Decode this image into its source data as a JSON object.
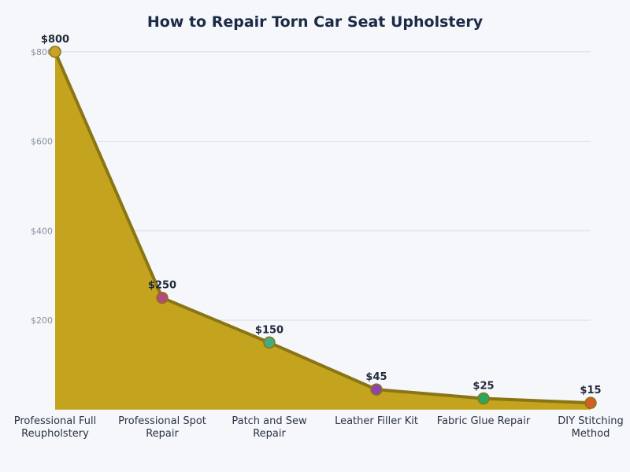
{
  "chart_data": {
    "type": "area",
    "title": "How to Repair Torn Car Seat Upholstery",
    "xlabel": "",
    "ylabel": "",
    "categories": [
      [
        "Professional Full",
        "Reupholstery"
      ],
      [
        "Professional Spot",
        "Repair"
      ],
      [
        "Patch and Sew",
        "Repair"
      ],
      [
        "Leather Filler Kit"
      ],
      [
        "Fabric Glue Repair"
      ],
      [
        "DIY Stitching",
        "Method"
      ]
    ],
    "values": [
      800,
      250,
      150,
      45,
      25,
      15
    ],
    "data_labels": [
      "$800",
      "$250",
      "$150",
      "$45",
      "$25",
      "$15"
    ],
    "ylim": [
      0,
      800
    ],
    "yticks": [
      200,
      400,
      600,
      800
    ],
    "ytick_labels": [
      "$200",
      "$400",
      "$600",
      "$800"
    ],
    "grid": true,
    "colors": {
      "area_fill": "#c4a41e",
      "line": "#8a7514",
      "points": [
        "#c9a227",
        "#b5487f",
        "#45ab82",
        "#8e44ad",
        "#2aa860",
        "#d35f26"
      ]
    }
  }
}
